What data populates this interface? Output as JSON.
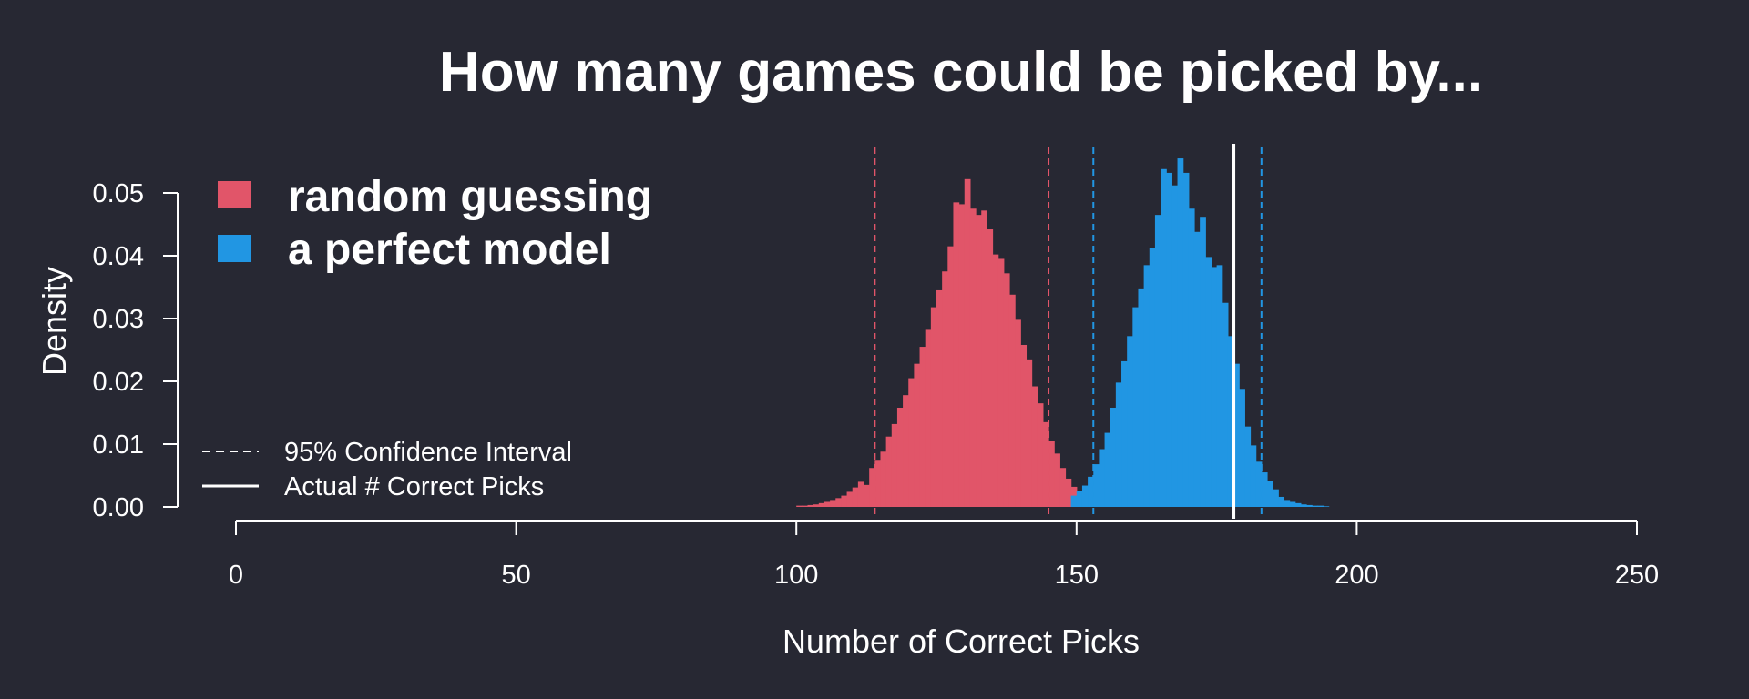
{
  "chart_data": {
    "type": "bar",
    "subtype": "histogram-density",
    "title": "How many games could be picked by...",
    "xlabel": "Number of Correct Picks",
    "ylabel": "Density",
    "xlim": [
      0,
      250
    ],
    "ylim": [
      0,
      0.05
    ],
    "x_ticks": [
      0,
      50,
      100,
      150,
      200,
      250
    ],
    "y_ticks": [
      0.0,
      0.01,
      0.02,
      0.03,
      0.04,
      0.05
    ],
    "grid": false,
    "background": "#272833",
    "legend_top": {
      "placement": "top-left",
      "entries": [
        "random guessing",
        "a perfect model"
      ]
    },
    "legend_bottom": {
      "placement": "bottom-left",
      "entries": [
        "95% Confidence Interval",
        "Actual # Correct Picks"
      ]
    },
    "series": [
      {
        "name": "random guessing",
        "color": "#E15569",
        "bin_width": 1,
        "bin_starts": [
          100,
          101,
          102,
          103,
          104,
          105,
          106,
          107,
          108,
          109,
          110,
          111,
          112,
          113,
          114,
          115,
          116,
          117,
          118,
          119,
          120,
          121,
          122,
          123,
          124,
          125,
          126,
          127,
          128,
          129,
          130,
          131,
          132,
          133,
          134,
          135,
          136,
          137,
          138,
          139,
          140,
          141,
          142,
          143,
          144,
          145,
          146,
          147,
          148,
          149,
          150,
          151,
          152,
          153,
          154,
          155,
          156,
          157
        ],
        "density": [
          0.0002,
          0.0002,
          0.0003,
          0.0004,
          0.0006,
          0.0008,
          0.0011,
          0.0014,
          0.0018,
          0.0024,
          0.0031,
          0.004,
          0.0035,
          0.0062,
          0.0075,
          0.0088,
          0.0112,
          0.0132,
          0.0158,
          0.0178,
          0.0205,
          0.0228,
          0.0255,
          0.0282,
          0.0318,
          0.0345,
          0.0375,
          0.0415,
          0.0485,
          0.0482,
          0.0522,
          0.0475,
          0.0465,
          0.0472,
          0.0442,
          0.0402,
          0.0395,
          0.0372,
          0.0338,
          0.0298,
          0.0258,
          0.0235,
          0.0192,
          0.0165,
          0.0135,
          0.0105,
          0.0085,
          0.0062,
          0.0045,
          0.0032,
          0.0022,
          0.0015,
          0.001,
          0.0006,
          0.0004,
          0.0003,
          0.0002,
          0.0001
        ]
      },
      {
        "name": "a perfect model",
        "color": "#2196E3",
        "bin_width": 1,
        "bin_starts": [
          149,
          150,
          151,
          152,
          153,
          154,
          155,
          156,
          157,
          158,
          159,
          160,
          161,
          162,
          163,
          164,
          165,
          166,
          167,
          168,
          169,
          170,
          171,
          172,
          173,
          174,
          175,
          176,
          177,
          178,
          179,
          180,
          181,
          182,
          183,
          184,
          185,
          186,
          187,
          188,
          189,
          190,
          191,
          192,
          193,
          194
        ],
        "density": [
          0.0018,
          0.0025,
          0.0034,
          0.0048,
          0.0068,
          0.0092,
          0.0118,
          0.0158,
          0.0198,
          0.0232,
          0.0272,
          0.0318,
          0.0348,
          0.0385,
          0.0412,
          0.0465,
          0.0538,
          0.0532,
          0.0512,
          0.0555,
          0.0532,
          0.0475,
          0.0438,
          0.0462,
          0.0398,
          0.0382,
          0.0385,
          0.0325,
          0.0272,
          0.0228,
          0.0188,
          0.0128,
          0.0098,
          0.0072,
          0.0055,
          0.0042,
          0.0028,
          0.0016,
          0.0011,
          0.0008,
          0.0006,
          0.0004,
          0.0003,
          0.0002,
          0.0002,
          0.0001
        ]
      }
    ],
    "confidence_intervals": [
      {
        "series": "random guessing",
        "color": "#E15569",
        "lower": 114,
        "upper": 145
      },
      {
        "series": "a perfect model",
        "color": "#2196E3",
        "lower": 153,
        "upper": 183
      }
    ],
    "actual_line": {
      "x": 178,
      "color": "#FFFFFF"
    }
  }
}
